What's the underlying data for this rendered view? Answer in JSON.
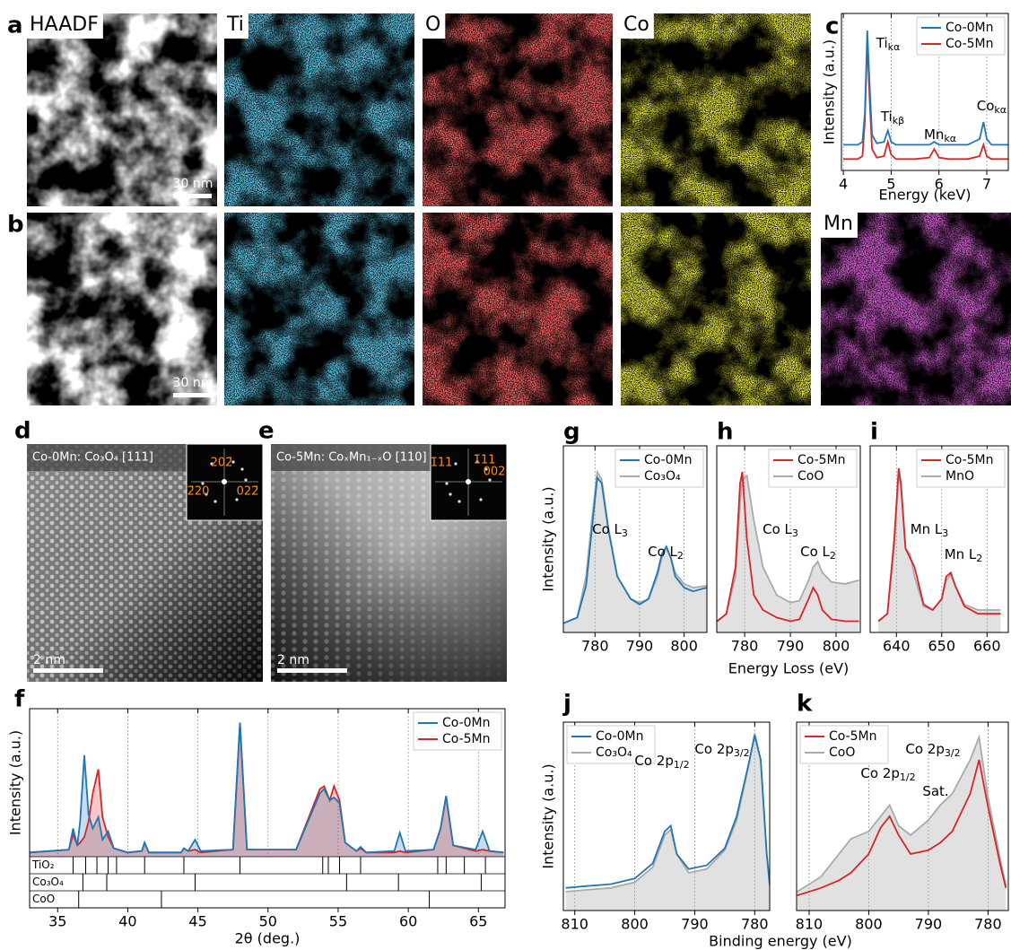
{
  "eds_maps": {
    "rows": [
      {
        "panel": "a",
        "labels": [
          "HAADF",
          "Ti",
          "O",
          "Co"
        ],
        "scale_bar": "30 nm"
      },
      {
        "panel": "b",
        "labels": [
          "Mn"
        ],
        "scale_bar": "30 nm"
      }
    ]
  },
  "hrstem": [
    {
      "panel": "d",
      "title": "Co-0Mn: Co₃O₄ [111]",
      "fft_labels": [
        "2̄20",
        "202̄",
        "022̄"
      ],
      "scale_bar": "2 nm"
    },
    {
      "panel": "e",
      "title": "Co-5Mn: CoₓMn₁₋ₓO [110]",
      "fft_labels": [
        "1̄11",
        "1̄11",
        "002"
      ],
      "scale_bar": "2 nm"
    }
  ],
  "chart_data": [
    {
      "type": "line",
      "panel": "c",
      "xlabel": "Energy (keV)",
      "ylabel": "Intensity (a.u.)",
      "xlim": [
        3.96,
        7.45
      ],
      "xticks": [
        4,
        5,
        6,
        7
      ],
      "ylim": [
        0,
        1.1
      ],
      "grid": true,
      "legend": "upper right",
      "x": [
        4,
        4.3,
        4.4,
        4.45,
        4.5,
        4.55,
        4.6,
        4.7,
        4.85,
        4.93,
        5.0,
        5.1,
        5.5,
        5.8,
        5.9,
        6.0,
        6.2,
        6.6,
        6.85,
        6.93,
        7.0,
        7.1,
        7.45
      ],
      "series": [
        {
          "name": "Co-0Mn",
          "color": "#1f77b4",
          "fill": false,
          "values": [
            0.18,
            0.18,
            0.2,
            0.4,
            0.98,
            0.6,
            0.25,
            0.19,
            0.2,
            0.28,
            0.2,
            0.18,
            0.18,
            0.18,
            0.2,
            0.18,
            0.18,
            0.18,
            0.22,
            0.34,
            0.22,
            0.18,
            0.18
          ]
        },
        {
          "name": "Co-5Mn",
          "color": "#d62728",
          "fill": false,
          "values": [
            0.08,
            0.08,
            0.1,
            0.35,
            0.9,
            0.5,
            0.15,
            0.09,
            0.1,
            0.2,
            0.11,
            0.08,
            0.08,
            0.09,
            0.15,
            0.09,
            0.08,
            0.08,
            0.1,
            0.18,
            0.1,
            0.08,
            0.08
          ]
        }
      ],
      "annotations": [
        {
          "text": "Ti",
          "sub": "kα"
        },
        {
          "text": "Ti",
          "sub": "kβ"
        },
        {
          "text": "Mn",
          "sub": "kα"
        },
        {
          "text": "Co",
          "sub": "kα"
        }
      ]
    },
    {
      "type": "line",
      "panel": "f",
      "xlabel": "2θ (deg.)",
      "ylabel": "Intensity (a.u.)",
      "xlim": [
        33,
        66.9
      ],
      "xticks": [
        35,
        40,
        45,
        50,
        55,
        60,
        65
      ],
      "ylim": [
        0,
        1.05
      ],
      "grid": true,
      "legend": "upper right",
      "x": [
        33,
        35.8,
        36.1,
        36.4,
        36.6,
        36.9,
        37.2,
        37.5,
        37.9,
        38.2,
        38.6,
        39.0,
        40,
        41.0,
        41.2,
        41.5,
        43.8,
        44.0,
        44.3,
        44.8,
        45.2,
        47.5,
        48.0,
        48.5,
        52,
        53.7,
        54.0,
        54.4,
        54.7,
        55.1,
        55.5,
        56.3,
        56.6,
        57,
        59,
        59.4,
        59.8,
        61.8,
        62.3,
        62.7,
        63.2,
        64.8,
        65.3,
        65.8,
        66.8
      ],
      "series": [
        {
          "name": "Co-0Mn",
          "color": "#1f77b4",
          "fill": true,
          "values": [
            0.03,
            0.05,
            0.2,
            0.08,
            0.25,
            0.72,
            0.3,
            0.2,
            0.28,
            0.12,
            0.18,
            0.06,
            0.03,
            0.04,
            0.1,
            0.03,
            0.03,
            0.06,
            0.04,
            0.12,
            0.04,
            0.05,
            0.95,
            0.05,
            0.05,
            0.45,
            0.48,
            0.4,
            0.42,
            0.38,
            0.1,
            0.04,
            0.07,
            0.03,
            0.04,
            0.17,
            0.04,
            0.05,
            0.2,
            0.43,
            0.08,
            0.05,
            0.18,
            0.04,
            0.03
          ]
        },
        {
          "name": "Co-5Mn",
          "color": "#d62728",
          "fill": true,
          "values": [
            0.03,
            0.05,
            0.16,
            0.08,
            0.1,
            0.14,
            0.25,
            0.45,
            0.62,
            0.28,
            0.14,
            0.06,
            0.03,
            0.04,
            0.1,
            0.03,
            0.03,
            0.06,
            0.04,
            0.05,
            0.03,
            0.05,
            0.95,
            0.05,
            0.05,
            0.48,
            0.5,
            0.4,
            0.5,
            0.4,
            0.1,
            0.04,
            0.06,
            0.03,
            0.03,
            0.04,
            0.03,
            0.05,
            0.2,
            0.43,
            0.08,
            0.04,
            0.05,
            0.04,
            0.03
          ]
        }
      ],
      "references": [
        {
          "name": "TiO₂",
          "positions": [
            36.1,
            37.0,
            37.8,
            38.6,
            39.2,
            41.2,
            44.0,
            48.0,
            53.9,
            54.3,
            55.1,
            56.6,
            62.1,
            62.7,
            64.0,
            65.5
          ]
        },
        {
          "name": "Co₃O₄",
          "positions": [
            36.8,
            38.5,
            44.8,
            55.6,
            59.3,
            65.2
          ]
        },
        {
          "name": "CoO",
          "positions": [
            36.5,
            42.4,
            61.5
          ]
        }
      ]
    },
    {
      "type": "line",
      "panel": "g",
      "ylabel": "Intensity (a.u.)",
      "xlim": [
        772.9,
        805.1
      ],
      "xticks": [
        780,
        790,
        800
      ],
      "ylim": [
        0,
        1
      ],
      "grid": true,
      "legend": "upper right",
      "x": [
        773,
        776,
        778,
        779.5,
        780.5,
        781.5,
        783,
        785,
        788,
        790,
        792,
        794,
        795,
        796,
        797,
        798,
        800,
        802,
        805
      ],
      "series": [
        {
          "name": "Co-0Mn",
          "color": "#1f77b4",
          "fill": false,
          "values": [
            0.05,
            0.08,
            0.25,
            0.6,
            0.83,
            0.8,
            0.55,
            0.3,
            0.18,
            0.15,
            0.18,
            0.32,
            0.42,
            0.46,
            0.4,
            0.3,
            0.24,
            0.22,
            0.24
          ]
        },
        {
          "name": "Co₃O₄",
          "color": "#aaaaaa",
          "fill": true,
          "values": [
            0.05,
            0.08,
            0.3,
            0.65,
            0.86,
            0.82,
            0.56,
            0.3,
            0.18,
            0.16,
            0.18,
            0.3,
            0.4,
            0.45,
            0.4,
            0.32,
            0.26,
            0.24,
            0.25
          ]
        }
      ],
      "annotations": [
        {
          "text": "Co L",
          "sub": "3"
        },
        {
          "text": "Co L",
          "sub": "2"
        }
      ]
    },
    {
      "type": "line",
      "panel": "h",
      "xlabel": "Energy Loss (eV)",
      "xlim": [
        773.9,
        805.3
      ],
      "xticks": [
        780,
        790,
        800
      ],
      "ylim": [
        0,
        1
      ],
      "grid": true,
      "legend": "upper right",
      "x": [
        774,
        776,
        778,
        779,
        779.5,
        780.5,
        782,
        784,
        787,
        790,
        792,
        794,
        795,
        796,
        797,
        799,
        802,
        805
      ],
      "series": [
        {
          "name": "Co-5Mn",
          "color": "#d62728",
          "fill": false,
          "values": [
            0.06,
            0.1,
            0.35,
            0.8,
            0.86,
            0.5,
            0.2,
            0.12,
            0.08,
            0.06,
            0.07,
            0.18,
            0.24,
            0.2,
            0.12,
            0.07,
            0.06,
            0.06
          ]
        },
        {
          "name": "CoO",
          "color": "#aaaaaa",
          "fill": true,
          "values": [
            0.06,
            0.1,
            0.3,
            0.7,
            0.82,
            0.84,
            0.6,
            0.35,
            0.2,
            0.16,
            0.17,
            0.28,
            0.35,
            0.38,
            0.32,
            0.27,
            0.26,
            0.28
          ]
        }
      ],
      "annotations": [
        {
          "text": "Co L",
          "sub": "3"
        },
        {
          "text": "Co L",
          "sub": "2"
        }
      ]
    },
    {
      "type": "line",
      "panel": "i",
      "xlim": [
        634.2,
        664.7
      ],
      "xticks": [
        640,
        650,
        660
      ],
      "ylim": [
        0,
        1
      ],
      "grid": true,
      "legend": "upper right",
      "x": [
        636,
        638,
        639.5,
        640.5,
        641,
        642,
        643,
        644,
        646,
        648,
        650,
        651,
        652,
        653,
        655,
        658,
        660,
        663
      ],
      "series": [
        {
          "name": "Co-5Mn",
          "color": "#d62728",
          "fill": false,
          "values": [
            0.06,
            0.1,
            0.5,
            0.88,
            0.8,
            0.45,
            0.4,
            0.35,
            0.15,
            0.12,
            0.18,
            0.3,
            0.32,
            0.25,
            0.14,
            0.1,
            0.1,
            0.1
          ]
        },
        {
          "name": "MnO",
          "color": "#aaaaaa",
          "fill": true,
          "values": [
            0.06,
            0.1,
            0.45,
            0.85,
            0.78,
            0.45,
            0.42,
            0.3,
            0.14,
            0.12,
            0.18,
            0.28,
            0.31,
            0.25,
            0.15,
            0.12,
            0.12,
            0.12
          ]
        }
      ],
      "annotations": [
        {
          "text": "Mn L",
          "sub": "3"
        },
        {
          "text": "Mn L",
          "sub": "2"
        }
      ]
    },
    {
      "type": "line",
      "panel": "j",
      "ylabel": "Intensity (a.u.)",
      "xlim": [
        811.9,
        777.5
      ],
      "xticks": [
        810,
        800,
        790,
        780
      ],
      "ylim": [
        0,
        1
      ],
      "grid": true,
      "legend": "upper left",
      "x": [
        811.5,
        808,
        804,
        800,
        797,
        795,
        794,
        793,
        791,
        788,
        785,
        783,
        781,
        780,
        779,
        778,
        777.5
      ],
      "series": [
        {
          "name": "Co-0Mn",
          "color": "#1f77b4",
          "fill": false,
          "values": [
            0.12,
            0.13,
            0.14,
            0.17,
            0.25,
            0.42,
            0.45,
            0.3,
            0.22,
            0.24,
            0.33,
            0.5,
            0.78,
            0.93,
            0.8,
            0.3,
            0.14
          ]
        },
        {
          "name": "Co₃O₄",
          "color": "#aaaaaa",
          "fill": true,
          "values": [
            0.1,
            0.11,
            0.12,
            0.15,
            0.23,
            0.4,
            0.43,
            0.3,
            0.2,
            0.22,
            0.32,
            0.48,
            0.77,
            0.94,
            0.8,
            0.3,
            0.13
          ]
        }
      ],
      "annotations": [
        {
          "text": "Co 2p",
          "sub": "1/2"
        },
        {
          "text": "Co 2p",
          "sub": "3/2"
        }
      ]
    },
    {
      "type": "line",
      "panel": "k",
      "xlabel": "Binding energy (eV)",
      "xlim": [
        812.1,
        776.6
      ],
      "xticks": [
        810,
        800,
        790,
        780
      ],
      "ylim": [
        0,
        1
      ],
      "grid": true,
      "legend": "upper left",
      "x": [
        812,
        808,
        805,
        803,
        800,
        798,
        796.5,
        795,
        793,
        790,
        788,
        786,
        783,
        781.5,
        780,
        778,
        777
      ],
      "series": [
        {
          "name": "Co-5Mn",
          "color": "#d62728",
          "fill": false,
          "values": [
            0.08,
            0.12,
            0.16,
            0.2,
            0.3,
            0.44,
            0.5,
            0.4,
            0.3,
            0.32,
            0.36,
            0.42,
            0.62,
            0.8,
            0.55,
            0.25,
            0.12
          ]
        },
        {
          "name": "CoO",
          "color": "#aaaaaa",
          "fill": true,
          "values": [
            0.1,
            0.18,
            0.3,
            0.38,
            0.42,
            0.5,
            0.56,
            0.45,
            0.4,
            0.48,
            0.56,
            0.62,
            0.8,
            0.92,
            0.6,
            0.28,
            0.13
          ]
        }
      ],
      "annotations": [
        {
          "text": "Co 2p",
          "sub": "1/2"
        },
        {
          "text": "Sat.",
          "sub": ""
        },
        {
          "text": "Co 2p",
          "sub": "3/2"
        }
      ]
    }
  ]
}
